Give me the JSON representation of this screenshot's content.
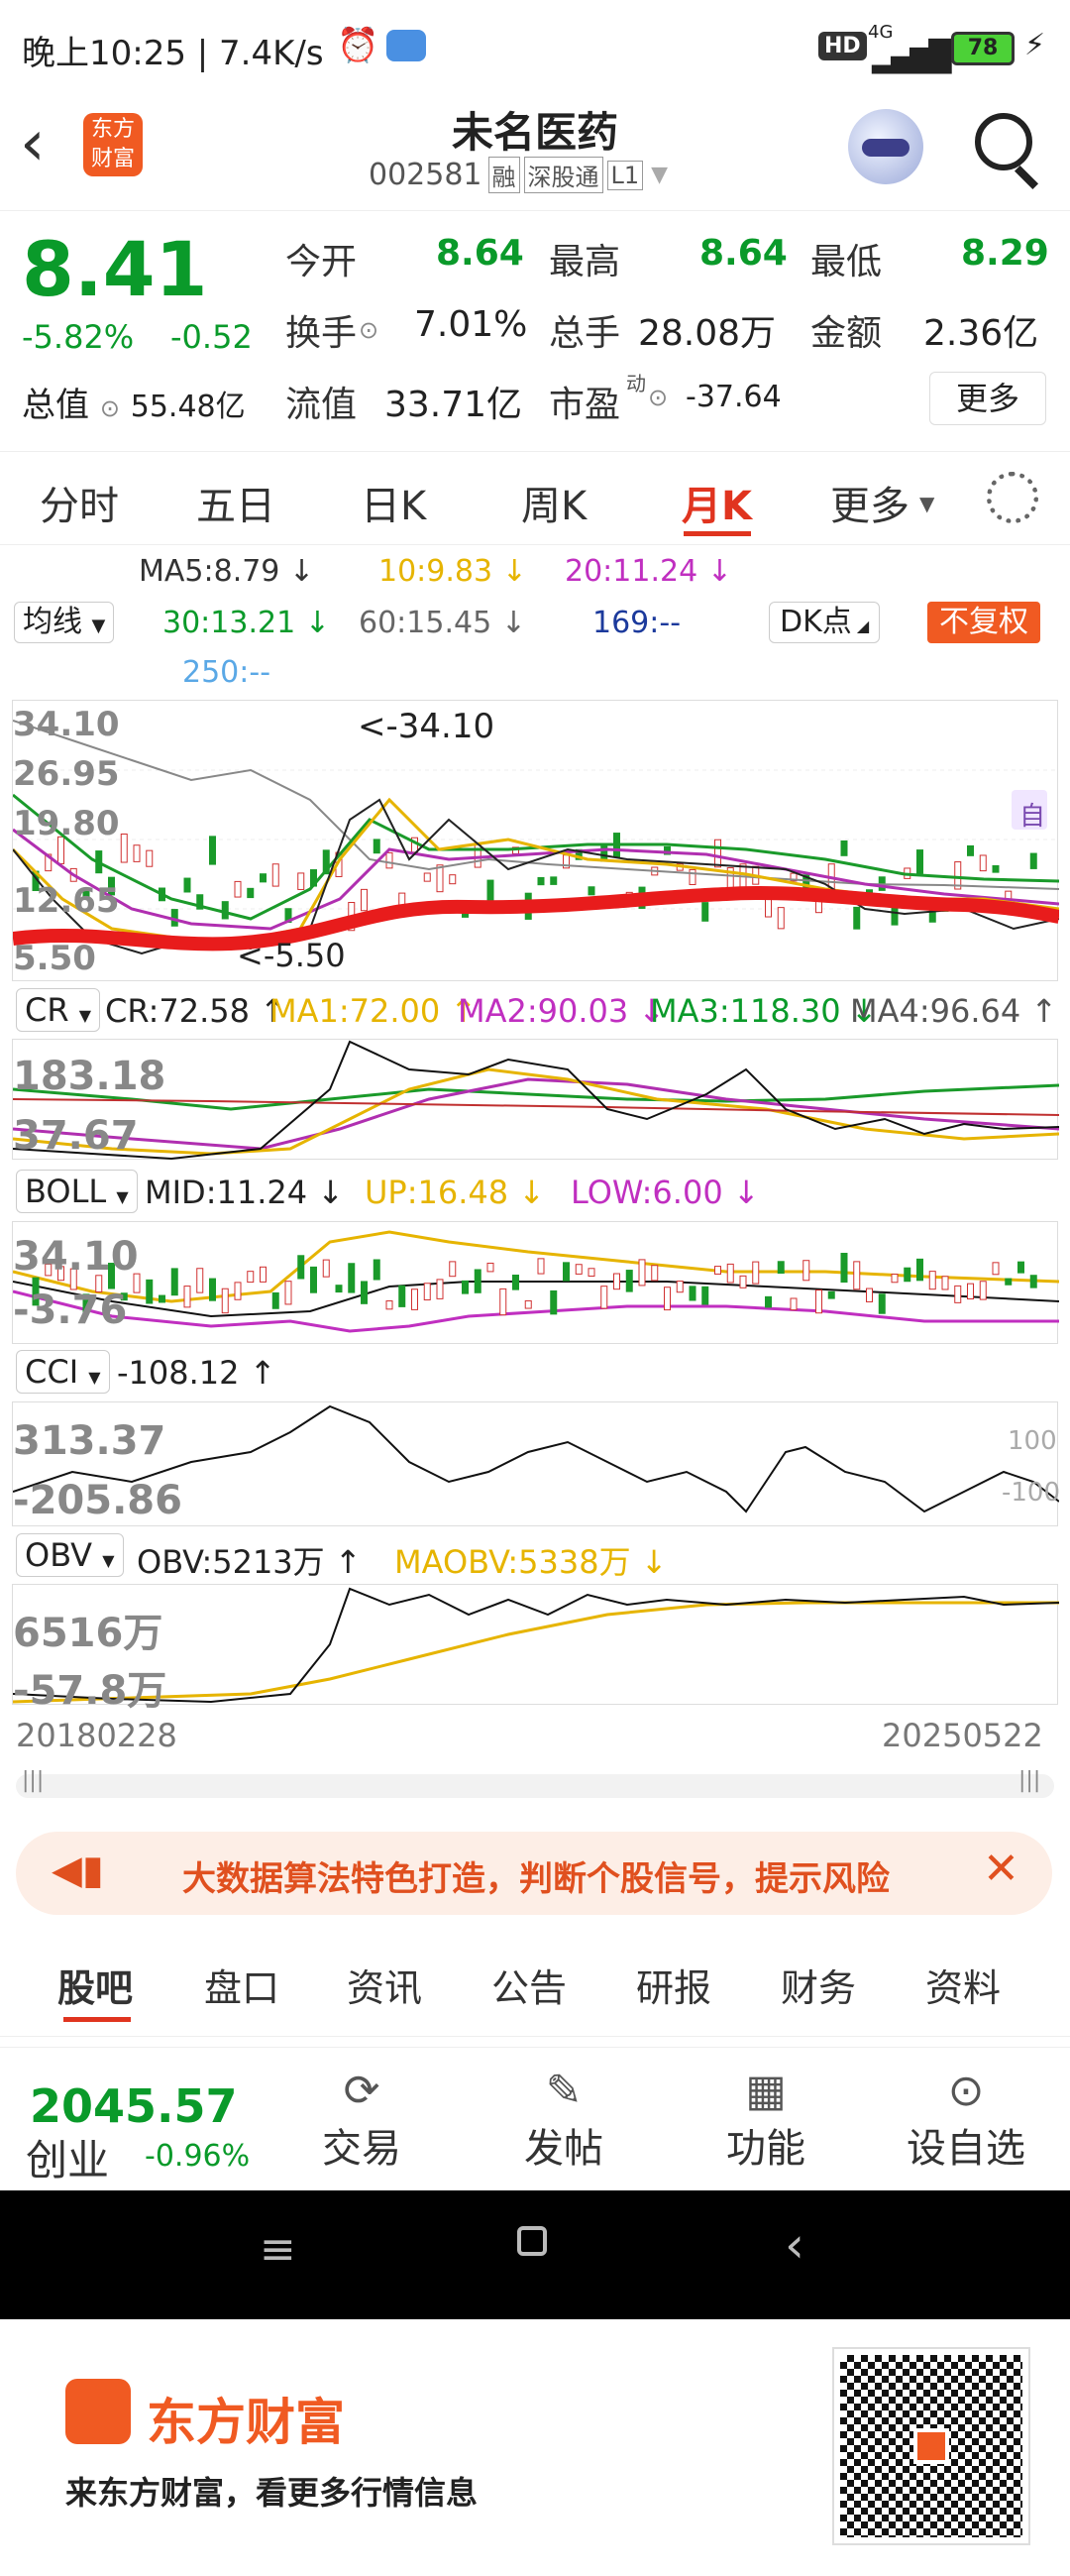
{
  "status": {
    "time_speed": "晚上10:25 | 7.4K/s",
    "hd": "HD",
    "net": "4G",
    "battery": "78"
  },
  "header": {
    "title": "未名医药",
    "code": "002581",
    "tags": [
      "融",
      "深股通",
      "L1"
    ],
    "logo_text": "东方财富"
  },
  "quote": {
    "price": "8.41",
    "change_pct": "-5.82%",
    "change_amt": "-0.52",
    "open_label": "今开",
    "open": "8.64",
    "high_label": "最高",
    "high": "8.64",
    "low_label": "最低",
    "low": "8.29",
    "turnover_label": "换手",
    "turnover": "7.01%",
    "volume_label": "总手",
    "volume": "28.08万",
    "amount_label": "金额",
    "amount": "2.36亿",
    "mktcap_label": "总值",
    "mktcap": "55.48亿",
    "float_label": "流值",
    "float": "33.71亿",
    "pe_label": "市盈",
    "pe_sup": "动",
    "pe": "-37.64",
    "more": "更多"
  },
  "periods": [
    "分时",
    "五日",
    "日K",
    "周K",
    "月K",
    "更多"
  ],
  "active_period": "月K",
  "ma": {
    "selector": "均线",
    "ma5": "MA5:8.79 ↓",
    "ma10": "10:9.83 ↓",
    "ma20": "20:11.24 ↓",
    "ma30": "30:13.21 ↓",
    "ma60": "60:15.45 ↓",
    "ma169": "169:--",
    "ma250": "250:--",
    "dk": "DK点",
    "fq": "不复权"
  },
  "kline": {
    "y1": "34.10",
    "y2": "26.95",
    "y3": "19.80",
    "y4": "12.65",
    "y5": "5.50",
    "max_mark": "<-34.10",
    "min_mark": "<-5.50",
    "zi": "自"
  },
  "cr": {
    "selector": "CR",
    "v": "CR:72.58 ↑",
    "ma1": "MA1:72.00 ↑",
    "ma2": "MA2:90.03 ↓",
    "ma3": "MA3:118.30 ↓",
    "ma4": "MA4:96.64 ↑",
    "y_top": "183.18",
    "y_bot": "37.67"
  },
  "boll": {
    "selector": "BOLL",
    "mid": "MID:11.24 ↓",
    "up": "UP:16.48 ↓",
    "low": "LOW:6.00 ↓",
    "y_top": "34.10",
    "y_bot": "-3.76"
  },
  "cci": {
    "selector": "CCI",
    "v": "-108.12 ↑",
    "y_top": "313.37",
    "y_bot": "-205.86",
    "ref1": "100",
    "ref2": "-100"
  },
  "obv": {
    "selector": "OBV",
    "v": "OBV:5213万 ↑",
    "maobv": "MAOBV:5338万 ↓",
    "y_top": "6516万",
    "y_bot": "-57.8万"
  },
  "dates": {
    "start": "20180228",
    "end": "20250522"
  },
  "banner": {
    "text": "大数据算法特色打造，判断个股信号，提示风险"
  },
  "tabs": [
    "股吧",
    "盘口",
    "资讯",
    "公告",
    "研报",
    "财务",
    "资料"
  ],
  "active_tab": "股吧",
  "index": {
    "value": "2045.57",
    "name": "创业",
    "change": "-0.96%"
  },
  "actions": [
    "交易",
    "发帖",
    "功能",
    "设自选"
  ],
  "footer": {
    "brand": "东方财富",
    "slogan": "来东方财富，看更多行情信息"
  },
  "colors": {
    "up": "#e0341f",
    "down": "#0a9a2a",
    "accent": "#f05a22"
  }
}
